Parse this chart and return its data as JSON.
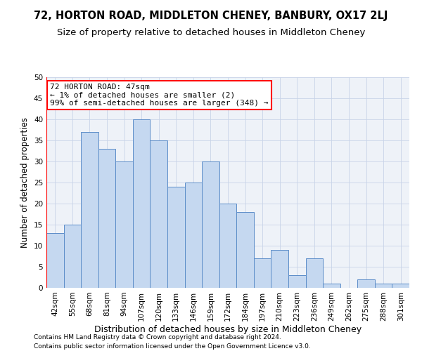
{
  "title": "72, HORTON ROAD, MIDDLETON CHENEY, BANBURY, OX17 2LJ",
  "subtitle": "Size of property relative to detached houses in Middleton Cheney",
  "xlabel": "Distribution of detached houses by size in Middleton Cheney",
  "ylabel": "Number of detached properties",
  "categories": [
    "42sqm",
    "55sqm",
    "68sqm",
    "81sqm",
    "94sqm",
    "107sqm",
    "120sqm",
    "133sqm",
    "146sqm",
    "159sqm",
    "172sqm",
    "184sqm",
    "197sqm",
    "210sqm",
    "223sqm",
    "236sqm",
    "249sqm",
    "262sqm",
    "275sqm",
    "288sqm",
    "301sqm"
  ],
  "values": [
    13,
    15,
    37,
    33,
    30,
    40,
    35,
    24,
    25,
    30,
    20,
    18,
    7,
    9,
    3,
    7,
    1,
    0,
    2,
    1,
    1
  ],
  "bar_color": "#c5d8f0",
  "bar_edge_color": "#5b8cc8",
  "annotation_text": "72 HORTON ROAD: 47sqm\n← 1% of detached houses are smaller (2)\n99% of semi-detached houses are larger (348) →",
  "annotation_box_color": "white",
  "annotation_box_edge_color": "red",
  "marker_color": "red",
  "ylim": [
    0,
    50
  ],
  "yticks": [
    0,
    5,
    10,
    15,
    20,
    25,
    30,
    35,
    40,
    45,
    50
  ],
  "grid_color": "#c8d4e8",
  "background_color": "#eef2f8",
  "footer": "Contains HM Land Registry data © Crown copyright and database right 2024.\nContains public sector information licensed under the Open Government Licence v3.0.",
  "title_fontsize": 10.5,
  "subtitle_fontsize": 9.5,
  "xlabel_fontsize": 9,
  "ylabel_fontsize": 8.5,
  "tick_fontsize": 7.5,
  "annotation_fontsize": 8,
  "footer_fontsize": 6.5
}
